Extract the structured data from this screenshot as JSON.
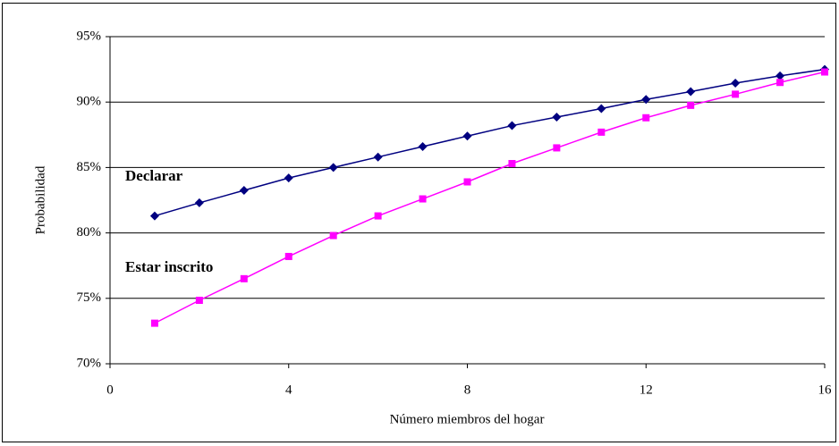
{
  "chart_data": {
    "type": "line",
    "y_label": "Probabilidad",
    "x_label": "Número miembros del hogar",
    "annotations": [
      "Declarar",
      "Estar inscrito"
    ],
    "x": [
      1,
      2,
      3,
      4,
      5,
      6,
      7,
      8,
      9,
      10,
      11,
      12,
      13,
      14,
      15,
      16
    ],
    "series": [
      {
        "name": "Declarar",
        "color": "#000080",
        "marker": "diamond",
        "values": [
          81.3,
          82.3,
          83.25,
          84.2,
          85.0,
          85.8,
          86.6,
          87.4,
          88.2,
          88.85,
          89.5,
          90.2,
          90.8,
          91.45,
          92.0,
          92.5
        ]
      },
      {
        "name": "Estar inscrito",
        "color": "#ff00ff",
        "marker": "square",
        "values": [
          73.1,
          74.85,
          76.5,
          78.2,
          79.8,
          81.3,
          82.6,
          83.9,
          85.3,
          86.5,
          87.7,
          88.8,
          89.75,
          90.6,
          91.5,
          92.3
        ]
      }
    ],
    "xlim": [
      0,
      16
    ],
    "xticks": [
      0,
      4,
      8,
      12,
      16
    ],
    "ylim": [
      70,
      95
    ],
    "yticks": [
      {
        "value": 70,
        "label": "70%"
      },
      {
        "value": 75,
        "label": "75%"
      },
      {
        "value": 80,
        "label": "80%"
      },
      {
        "value": 85,
        "label": "85%"
      },
      {
        "value": 90,
        "label": "90%"
      },
      {
        "value": 95,
        "label": "95%"
      }
    ],
    "grid": true
  }
}
